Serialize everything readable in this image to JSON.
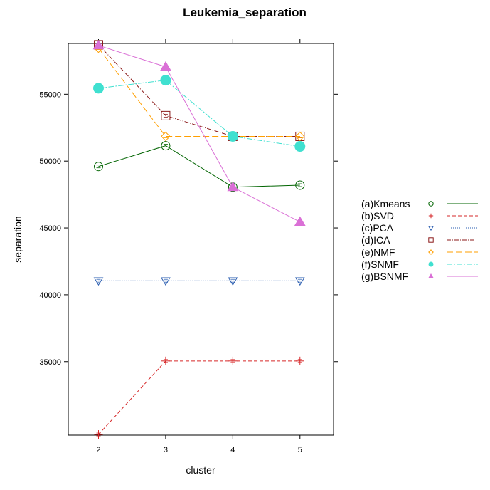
{
  "chart_data": {
    "type": "line",
    "title": "Leukemia_separation",
    "xlabel": "cluster",
    "ylabel": "separation",
    "x": [
      2,
      3,
      4,
      5
    ],
    "xlim": [
      1.55,
      5.5
    ],
    "ylim": [
      29500,
      58800
    ],
    "xticks": [
      "2",
      "3",
      "4",
      "5"
    ],
    "yticks": [
      35000,
      40000,
      45000,
      50000,
      55000
    ],
    "ytick_labels": [
      "35000",
      "40000",
      "45000",
      "50000",
      "55000"
    ],
    "grid": false,
    "legend_position": "right",
    "series": [
      {
        "name": "(a)Kmeans",
        "values": [
          49600,
          51150,
          48050,
          48200
        ],
        "color": "#006400",
        "dash": "",
        "marker": "circle-open"
      },
      {
        "name": "(b)SVD",
        "values": [
          29550,
          35050,
          35050,
          35050
        ],
        "color": "#d62728",
        "dash": "5,3",
        "marker": "plus"
      },
      {
        "name": "(c)PCA",
        "values": [
          41050,
          41050,
          41050,
          41050
        ],
        "color": "#2a5db0",
        "dash": "1,2",
        "marker": "triangle-down-open"
      },
      {
        "name": "(d)ICA",
        "values": [
          58700,
          53400,
          51850,
          51850
        ],
        "color": "#8b1a1a",
        "dash": "6,2,1,2",
        "marker": "square-open"
      },
      {
        "name": "(e)NMF",
        "values": [
          58450,
          51850,
          51850,
          51850
        ],
        "color": "#ff9f00",
        "dash": "9,4",
        "marker": "diamond-open"
      },
      {
        "name": "(f)SNMF",
        "values": [
          55450,
          56050,
          51850,
          51100
        ],
        "color": "#40e0d0",
        "dash": "8,2,2,2",
        "marker": "circle-filled"
      },
      {
        "name": "(g)BSNMF",
        "values": [
          58650,
          57050,
          48050,
          45450
        ],
        "color": "#da70d6",
        "dash": "",
        "marker": "triangle-up-filled"
      }
    ]
  }
}
